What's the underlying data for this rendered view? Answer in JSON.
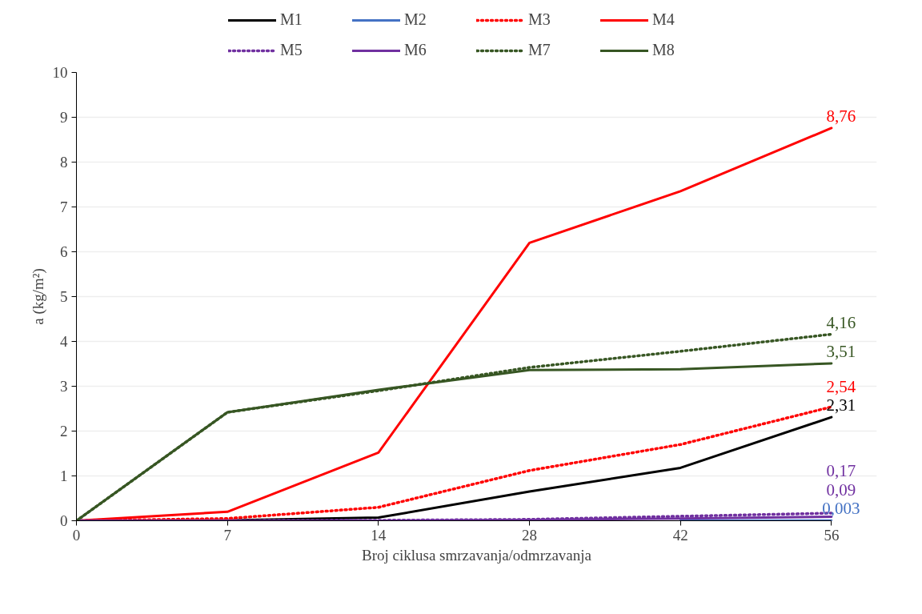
{
  "chart_data": {
    "type": "line",
    "xlabel": "Broj ciklusa smrzavanja/odmrzavanja",
    "ylabel": "a (kg/m²)",
    "categories": [
      "0",
      "7",
      "14",
      "28",
      "42",
      "56"
    ],
    "ylim": [
      0,
      10
    ],
    "yticks": [
      0,
      1,
      2,
      3,
      4,
      5,
      6,
      7,
      8,
      9,
      10
    ],
    "grid": "y",
    "legend": "top",
    "marker": "none",
    "series": [
      {
        "name": "M1",
        "color": "#000000",
        "line_style": "solid",
        "values": [
          0,
          0.01,
          0.07,
          0.65,
          1.18,
          2.31
        ],
        "value_labels": [
          null,
          null,
          null,
          null,
          null,
          "2,31"
        ]
      },
      {
        "name": "M2",
        "color": "#4472c4",
        "line_style": "solid",
        "values": [
          null,
          null,
          null,
          null,
          0,
          0.003
        ],
        "value_labels": [
          null,
          null,
          null,
          null,
          null,
          "0,003"
        ]
      },
      {
        "name": "M3",
        "color": "#ff0000",
        "line_style": "dotted",
        "values": [
          0,
          0.05,
          0.3,
          1.12,
          1.7,
          2.54
        ],
        "value_labels": [
          null,
          null,
          null,
          null,
          null,
          "2,54"
        ]
      },
      {
        "name": "M4",
        "color": "#ff0000",
        "line_style": "solid",
        "values": [
          0,
          0.2,
          1.52,
          6.2,
          7.35,
          8.76
        ],
        "value_labels": [
          null,
          null,
          null,
          null,
          null,
          "8,76"
        ]
      },
      {
        "name": "M5",
        "color": "#7030a0",
        "line_style": "dotted",
        "values": [
          0,
          0,
          0.01,
          0.03,
          0.1,
          0.17
        ],
        "value_labels": [
          null,
          null,
          null,
          null,
          null,
          "0,17"
        ]
      },
      {
        "name": "M6",
        "color": "#7030a0",
        "line_style": "solid",
        "values": [
          0,
          0,
          0,
          0.02,
          0.05,
          0.09
        ],
        "value_labels": [
          null,
          null,
          null,
          null,
          null,
          "0,09"
        ]
      },
      {
        "name": "M7",
        "color": "#375623",
        "line_style": "dotted",
        "values": [
          0,
          2.42,
          2.9,
          3.42,
          3.78,
          4.16
        ],
        "value_labels": [
          null,
          null,
          null,
          null,
          null,
          "4,16"
        ]
      },
      {
        "name": "M8",
        "color": "#375623",
        "line_style": "solid",
        "values": [
          0,
          2.42,
          2.92,
          3.36,
          3.38,
          3.51
        ],
        "value_labels": [
          null,
          null,
          null,
          null,
          null,
          "3,51"
        ]
      }
    ]
  }
}
